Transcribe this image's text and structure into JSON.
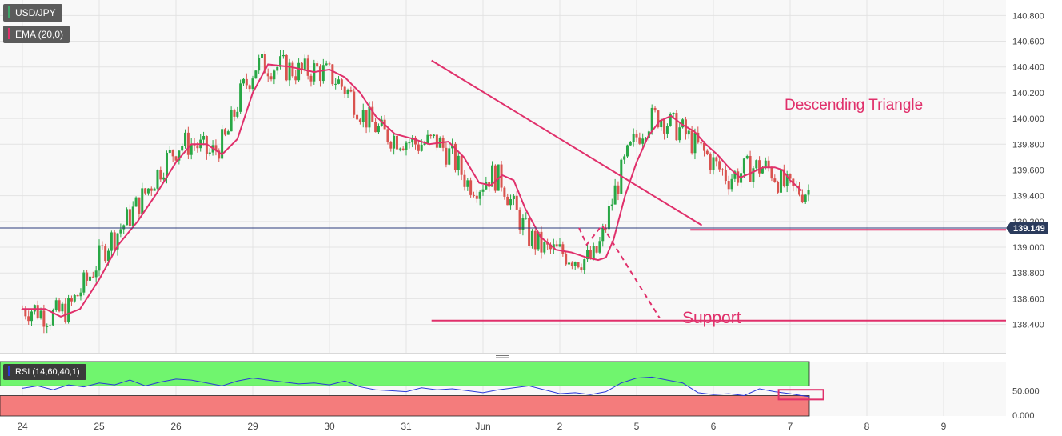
{
  "legend": {
    "symbol": "USD/JPY",
    "indicator": "EMA (20,0)",
    "rsi": "RSI (14,60,40,1)"
  },
  "colors": {
    "accent": "#e0306b",
    "candle_up": "#28a745",
    "candle_down": "#d9534f",
    "rsi_line": "#2a39d8",
    "rsi_upper_zone": "#70f56e",
    "rsi_lower_zone": "#f47c7c",
    "price_tag": "#2b3b5c"
  },
  "annotations": {
    "triangle": "Descending Triangle",
    "support": "Support"
  },
  "chart_data": {
    "type": "candlestick",
    "title": "",
    "xlabel": "",
    "ylabel": "",
    "x_ticks": [
      "24",
      "25",
      "26",
      "29",
      "30",
      "31",
      "Jun",
      "2",
      "5",
      "6",
      "7",
      "8",
      "9"
    ],
    "y_ticks": [
      "140.800",
      "140.600",
      "140.400",
      "140.200",
      "140.000",
      "139.800",
      "139.600",
      "139.400",
      "139.200",
      "139.000",
      "138.800",
      "138.600",
      "138.400"
    ],
    "ylim": [
      138.18,
      140.92
    ],
    "last_price": "139.149",
    "support_level": 138.43,
    "neckline_level": 139.135,
    "triangle_upper_line": [
      [
        5.33,
        140.45
      ],
      [
        8.85,
        139.17
      ]
    ],
    "projection": [
      [
        7.25,
        139.15
      ],
      [
        7.35,
        139.02
      ],
      [
        7.55,
        139.17
      ],
      [
        8.3,
        138.45
      ]
    ],
    "ema": {
      "name": "EMA (20,0)",
      "points": [
        [
          0.0,
          138.52
        ],
        [
          0.3,
          138.52
        ],
        [
          0.5,
          138.46
        ],
        [
          0.75,
          138.52
        ],
        [
          1.0,
          138.75
        ],
        [
          1.25,
          139.02
        ],
        [
          1.5,
          139.2
        ],
        [
          1.75,
          139.42
        ],
        [
          2.0,
          139.66
        ],
        [
          2.2,
          139.8
        ],
        [
          2.4,
          139.8
        ],
        [
          2.6,
          139.72
        ],
        [
          2.8,
          139.84
        ],
        [
          3.0,
          140.2
        ],
        [
          3.2,
          140.42
        ],
        [
          3.5,
          140.4
        ],
        [
          3.8,
          140.36
        ],
        [
          4.0,
          140.38
        ],
        [
          4.2,
          140.32
        ],
        [
          4.4,
          140.2
        ],
        [
          4.6,
          140.02
        ],
        [
          4.85,
          139.88
        ],
        [
          5.1,
          139.84
        ],
        [
          5.3,
          139.8
        ],
        [
          5.55,
          139.82
        ],
        [
          5.75,
          139.7
        ],
        [
          5.95,
          139.5
        ],
        [
          6.1,
          139.48
        ],
        [
          6.25,
          139.56
        ],
        [
          6.4,
          139.52
        ],
        [
          6.55,
          139.3
        ],
        [
          6.75,
          139.08
        ],
        [
          6.95,
          138.98
        ],
        [
          7.15,
          138.96
        ],
        [
          7.35,
          138.92
        ],
        [
          7.5,
          138.9
        ],
        [
          7.6,
          138.92
        ],
        [
          7.7,
          139.06
        ],
        [
          7.85,
          139.4
        ],
        [
          8.0,
          139.66
        ],
        [
          8.15,
          139.86
        ],
        [
          8.3,
          139.98
        ],
        [
          8.45,
          140.02
        ],
        [
          8.6,
          139.95
        ],
        [
          8.75,
          139.9
        ],
        [
          8.9,
          139.8
        ],
        [
          9.05,
          139.72
        ],
        [
          9.2,
          139.62
        ],
        [
          9.35,
          139.54
        ],
        [
          9.5,
          139.58
        ],
        [
          9.65,
          139.62
        ],
        [
          9.8,
          139.62
        ],
        [
          9.9,
          139.6
        ],
        [
          10.0,
          139.52
        ],
        [
          10.15,
          139.44
        ]
      ]
    },
    "rsi": {
      "name": "RSI (14,60,40,1)",
      "ylim": [
        -2,
        110
      ],
      "upper_band": 60,
      "lower_band": 40,
      "y_ticks": [
        "50.000",
        "0.000"
      ],
      "points": [
        [
          0.0,
          55
        ],
        [
          0.2,
          60
        ],
        [
          0.4,
          52
        ],
        [
          0.6,
          62
        ],
        [
          0.8,
          58
        ],
        [
          1.0,
          66
        ],
        [
          1.2,
          62
        ],
        [
          1.4,
          72
        ],
        [
          1.6,
          60
        ],
        [
          1.8,
          68
        ],
        [
          2.0,
          74
        ],
        [
          2.2,
          72
        ],
        [
          2.4,
          66
        ],
        [
          2.6,
          60
        ],
        [
          2.8,
          70
        ],
        [
          3.0,
          76
        ],
        [
          3.2,
          72
        ],
        [
          3.4,
          68
        ],
        [
          3.6,
          64
        ],
        [
          3.8,
          66
        ],
        [
          4.0,
          62
        ],
        [
          4.2,
          70
        ],
        [
          4.4,
          58
        ],
        [
          4.6,
          52
        ],
        [
          4.8,
          50
        ],
        [
          5.0,
          48
        ],
        [
          5.2,
          56
        ],
        [
          5.4,
          52
        ],
        [
          5.6,
          54
        ],
        [
          5.8,
          50
        ],
        [
          6.0,
          46
        ],
        [
          6.2,
          52
        ],
        [
          6.4,
          56
        ],
        [
          6.6,
          60
        ],
        [
          6.8,
          52
        ],
        [
          7.0,
          44
        ],
        [
          7.2,
          46
        ],
        [
          7.4,
          42
        ],
        [
          7.6,
          48
        ],
        [
          7.8,
          66
        ],
        [
          8.0,
          76
        ],
        [
          8.2,
          78
        ],
        [
          8.4,
          72
        ],
        [
          8.6,
          66
        ],
        [
          8.8,
          46
        ],
        [
          9.0,
          42
        ],
        [
          9.2,
          44
        ],
        [
          9.4,
          40
        ],
        [
          9.6,
          54
        ],
        [
          9.8,
          48
        ],
        [
          10.0,
          44
        ],
        [
          10.15,
          40
        ],
        [
          10.25,
          38
        ]
      ]
    }
  }
}
